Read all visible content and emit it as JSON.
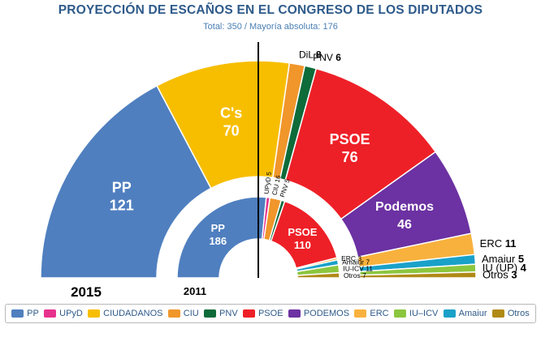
{
  "title": "PROYECCIÓN DE ESCAÑOS EN EL CONGRESO DE LOS DIPUTADOS",
  "subtitle": "Total: 350 / Mayoría absoluta: 176",
  "chart_data": {
    "type": "pie",
    "variant": "parliament-hemicycle",
    "total_seats": 350,
    "majority": 176,
    "rings": [
      {
        "label": "2015",
        "seats": [
          {
            "party": "PP",
            "seats": 121,
            "color": "#4f7fbf",
            "label_in": "PP",
            "value_in": "121"
          },
          {
            "party": "C's",
            "seats": 70,
            "color": "#f7be00",
            "label_in": "C's",
            "value_in": "70"
          },
          {
            "party": "DiL",
            "seats": 8,
            "color": "#f0962b",
            "label_out": "DiL",
            "value_out": "8"
          },
          {
            "party": "PNV",
            "seats": 6,
            "color": "#0e6b3a",
            "label_out": "PNV",
            "value_out": "6"
          },
          {
            "party": "PSOE",
            "seats": 76,
            "color": "#ee2027",
            "label_in": "PSOE",
            "value_in": "76"
          },
          {
            "party": "Podemos",
            "seats": 46,
            "color": "#6c31a2",
            "label_in": "Podemos",
            "value_in": "46"
          },
          {
            "party": "ERC",
            "seats": 11,
            "color": "#f8b13d",
            "label_out": "ERC",
            "value_out": "11"
          },
          {
            "party": "Amaiur",
            "seats": 5,
            "color": "#1aa1c9",
            "label_out": "Amaiur",
            "value_out": "5"
          },
          {
            "party": "IU (UP)",
            "seats": 4,
            "color": "#8cc63f",
            "label_out": "IU (UP)",
            "value_out": "4"
          },
          {
            "party": "Otros",
            "seats": 3,
            "color": "#b08a16",
            "label_out": "Otros",
            "value_out": "3"
          }
        ]
      },
      {
        "label": "2011",
        "seats": [
          {
            "party": "PP",
            "seats": 186,
            "color": "#4f7fbf",
            "label_in": "PP",
            "value_in": "186"
          },
          {
            "party": "UPyD",
            "seats": 5,
            "color": "#e8318d",
            "label_out": "UPyD 5"
          },
          {
            "party": "CIU",
            "seats": 16,
            "color": "#f0962b",
            "label_out": "CIU 16"
          },
          {
            "party": "PNV",
            "seats": 5,
            "color": "#0e6b3a",
            "label_out": "PNV 5"
          },
          {
            "party": "PSOE",
            "seats": 110,
            "color": "#ee2027",
            "label_in": "PSOE",
            "value_in": "110"
          },
          {
            "party": "ERC",
            "seats": 3,
            "color": "#f8b13d",
            "label_out": "ERC 3"
          },
          {
            "party": "Amaiur",
            "seats": 7,
            "color": "#1aa1c9",
            "label_out": "Amaiur 7"
          },
          {
            "party": "IU-ICV",
            "seats": 11,
            "color": "#8cc63f",
            "label_out": "IU-ICV 11"
          },
          {
            "party": "Otros",
            "seats": 7,
            "color": "#b08a16",
            "label_out": "Otros 7"
          }
        ]
      }
    ],
    "legend": {
      "position": "bottom",
      "entries": [
        {
          "name": "PP",
          "color": "#4f7fbf"
        },
        {
          "name": "UPyD",
          "color": "#e8318d"
        },
        {
          "name": "CIUDADANOS",
          "color": "#f7be00"
        },
        {
          "name": "CIU",
          "color": "#f0962b"
        },
        {
          "name": "PNV",
          "color": "#0e6b3a"
        },
        {
          "name": "PSOE",
          "color": "#ee2027"
        },
        {
          "name": "PODEMOS",
          "color": "#6c31a2"
        },
        {
          "name": "ERC",
          "color": "#f8b13d"
        },
        {
          "name": "IU–ICV",
          "color": "#8cc63f"
        },
        {
          "name": "Amaiur",
          "color": "#1aa1c9"
        },
        {
          "name": "Otros",
          "color": "#b08a16"
        }
      ]
    }
  }
}
